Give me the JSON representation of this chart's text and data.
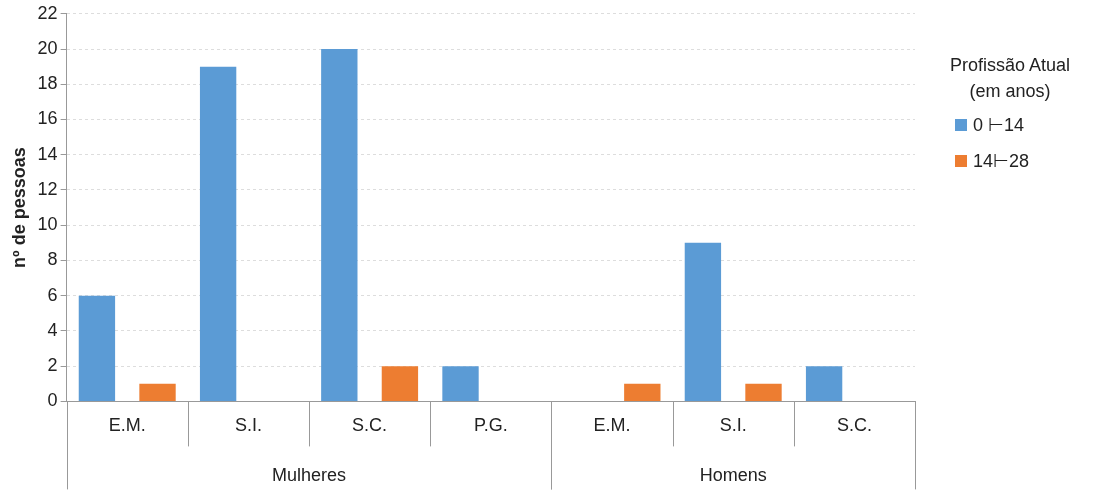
{
  "chart_data": {
    "type": "bar",
    "ylabel": "nº de pessoas",
    "legend_title": "Profissão Atual (em anos)",
    "categories": [
      "E.M.",
      "S.I.",
      "S.C.",
      "P.G.",
      "E.M.",
      "S.I.",
      "S.C."
    ],
    "series": [
      {
        "name": "0 ⊢14",
        "color": "#5b9bd5",
        "values": [
          6,
          19,
          20,
          2,
          0,
          9,
          2
        ]
      },
      {
        "name": "14⊢28",
        "color": "#ed7d31",
        "values": [
          1,
          0,
          2,
          0,
          1,
          1,
          0
        ]
      }
    ],
    "ylim": [
      0,
      22
    ],
    "yticks": [
      0,
      2,
      4,
      6,
      8,
      10,
      12,
      14,
      16,
      18,
      20,
      22
    ],
    "grid": "y",
    "legend": "right",
    "annotations": [
      "Mulheres",
      "Homens"
    ]
  }
}
